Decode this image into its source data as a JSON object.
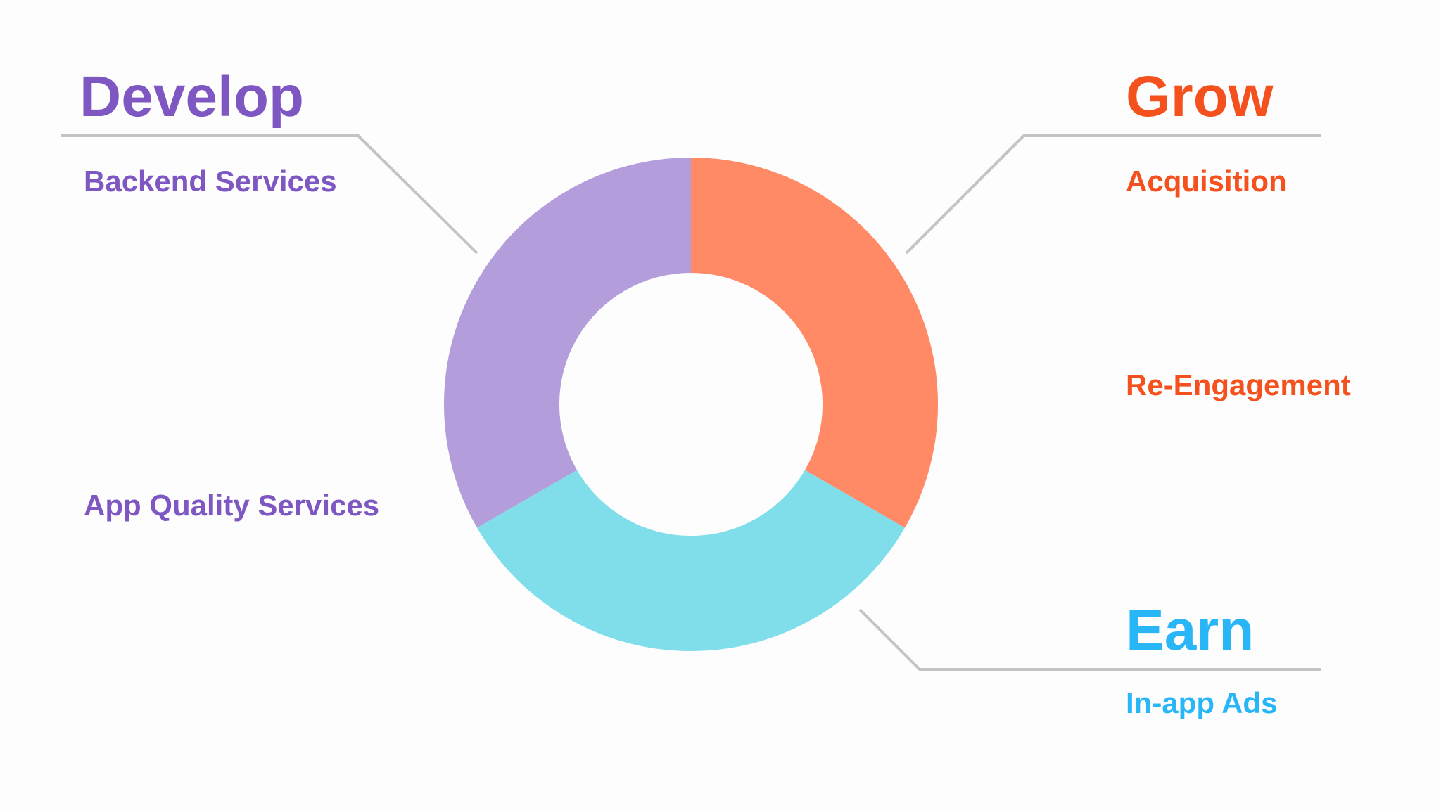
{
  "develop": {
    "title": "Develop",
    "items": [
      "Backend Services",
      "App Quality Services"
    ]
  },
  "grow": {
    "title": "Grow",
    "items": [
      "Acquisition",
      "Re-Engagement"
    ]
  },
  "earn": {
    "title": "Earn",
    "items": [
      "In-app Ads"
    ]
  }
}
